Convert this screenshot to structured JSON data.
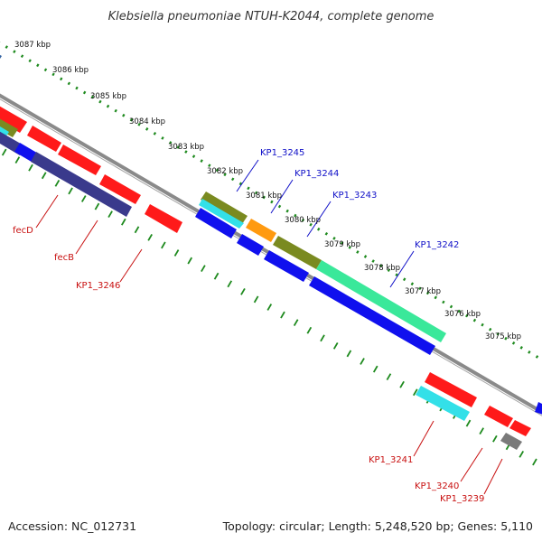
{
  "title": "Klebsiella pneumoniae NTUH-K2044, complete genome",
  "footer": {
    "accession": "Accession: NC_012731",
    "summary": "Topology: circular; Length: 5,248,520 bp; Genes: 5,110"
  },
  "scale_labels": [
    "3087 kbp",
    "3086 kbp",
    "3085 kbp",
    "3084 kbp",
    "3083 kbp",
    "3082 kbp",
    "3081 kbp",
    "3080 kbp",
    "3079 kbp",
    "3078 kbp",
    "3077 kbp",
    "3076 kbp",
    "3075 kbp"
  ],
  "gene_labels_top": [
    "KP1_3245",
    "KP1_3244",
    "KP1_3243",
    "KP1_3242"
  ],
  "gene_labels_bottom": [
    "fecD",
    "fecB",
    "KP1_3246",
    "KP1_3241",
    "KP1_3240",
    "KP1_3239"
  ],
  "colors": {
    "top_label": "#1010c8",
    "bottom_label": "#c81010",
    "ruler": "#1e8a1e",
    "backbone": "#8a8a8a",
    "red": "#ff1a1a",
    "blue": "#1010ee",
    "navy": "#3a3a8c",
    "cyan": "#33e0e8",
    "olive": "#7a8a20",
    "orange": "#ff9a10",
    "seagreen": "#3ae89a",
    "gray": "#7a7a7a",
    "steelblue": "#3060a0"
  }
}
